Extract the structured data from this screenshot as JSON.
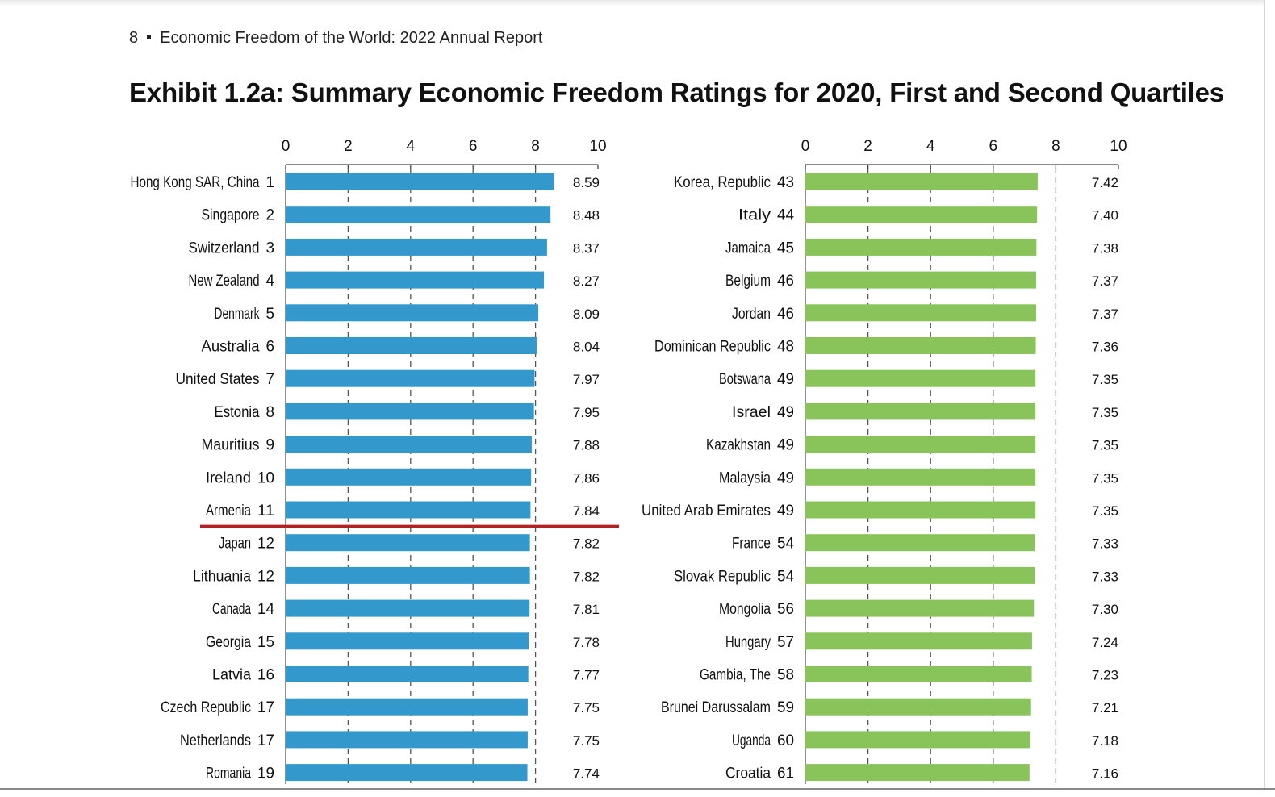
{
  "page": {
    "page_number": "8",
    "report_title": "Economic Freedom of the World: 2022 Annual Report",
    "exhibit_title": "Exhibit 1.2a: Summary Economic Freedom Ratings for 2020, First and Second Quartiles"
  },
  "colors": {
    "first_quartile": "#3399cc",
    "second_quartile": "#88c45a",
    "cutoff_line": "#b22222"
  },
  "chart_data": [
    {
      "type": "bar",
      "orientation": "horizontal",
      "xlim": [
        0,
        10
      ],
      "xticks": [
        "0",
        "2",
        "4",
        "6",
        "8",
        "10"
      ],
      "grid": "dashed vertical at 2, 4, 6, 8",
      "color": "#3399cc",
      "cutoff_after_index": 10,
      "categories": [
        "Hong Kong SAR, China",
        "Singapore",
        "Switzerland",
        "New Zealand",
        "Denmark",
        "Australia",
        "United States",
        "Estonia",
        "Mauritius",
        "Ireland",
        "Armenia",
        "Japan",
        "Lithuania",
        "Canada",
        "Georgia",
        "Latvia",
        "Czech Republic",
        "Netherlands",
        "Romania"
      ],
      "ranks": [
        "1",
        "2",
        "3",
        "4",
        "5",
        "6",
        "7",
        "8",
        "9",
        "10",
        "11",
        "12",
        "12",
        "14",
        "15",
        "16",
        "17",
        "17",
        "19"
      ],
      "values": [
        8.59,
        8.48,
        8.37,
        8.27,
        8.09,
        8.04,
        7.97,
        7.95,
        7.88,
        7.86,
        7.84,
        7.82,
        7.82,
        7.81,
        7.78,
        7.77,
        7.75,
        7.75,
        7.74
      ],
      "value_labels": [
        "8.59",
        "8.48",
        "8.37",
        "8.27",
        "8.09",
        "8.04",
        "7.97",
        "7.95",
        "7.88",
        "7.86",
        "7.84",
        "7.82",
        "7.82",
        "7.81",
        "7.78",
        "7.77",
        "7.75",
        "7.75",
        "7.74"
      ]
    },
    {
      "type": "bar",
      "orientation": "horizontal",
      "xlim": [
        0,
        10
      ],
      "xticks": [
        "0",
        "2",
        "4",
        "6",
        "8",
        "10"
      ],
      "grid": "dashed vertical at 2, 4, 6, 8",
      "color": "#88c45a",
      "categories": [
        "Korea, Republic",
        "Italy",
        "Jamaica",
        "Belgium",
        "Jordan",
        "Dominican Republic",
        "Botswana",
        "Israel",
        "Kazakhstan",
        "Malaysia",
        "United Arab Emirates",
        "France",
        "Slovak Republic",
        "Mongolia",
        "Hungary",
        "Gambia, The",
        "Brunei Darussalam",
        "Uganda",
        "Croatia"
      ],
      "ranks": [
        "43",
        "44",
        "45",
        "46",
        "46",
        "48",
        "49",
        "49",
        "49",
        "49",
        "49",
        "54",
        "54",
        "56",
        "57",
        "58",
        "59",
        "60",
        "61"
      ],
      "values": [
        7.42,
        7.4,
        7.38,
        7.37,
        7.37,
        7.36,
        7.35,
        7.35,
        7.35,
        7.35,
        7.35,
        7.33,
        7.33,
        7.3,
        7.24,
        7.23,
        7.21,
        7.18,
        7.16
      ],
      "value_labels": [
        "7.42",
        "7.40",
        "7.38",
        "7.37",
        "7.37",
        "7.36",
        "7.35",
        "7.35",
        "7.35",
        "7.35",
        "7.35",
        "7.33",
        "7.33",
        "7.30",
        "7.24",
        "7.23",
        "7.21",
        "7.18",
        "7.16"
      ]
    }
  ]
}
